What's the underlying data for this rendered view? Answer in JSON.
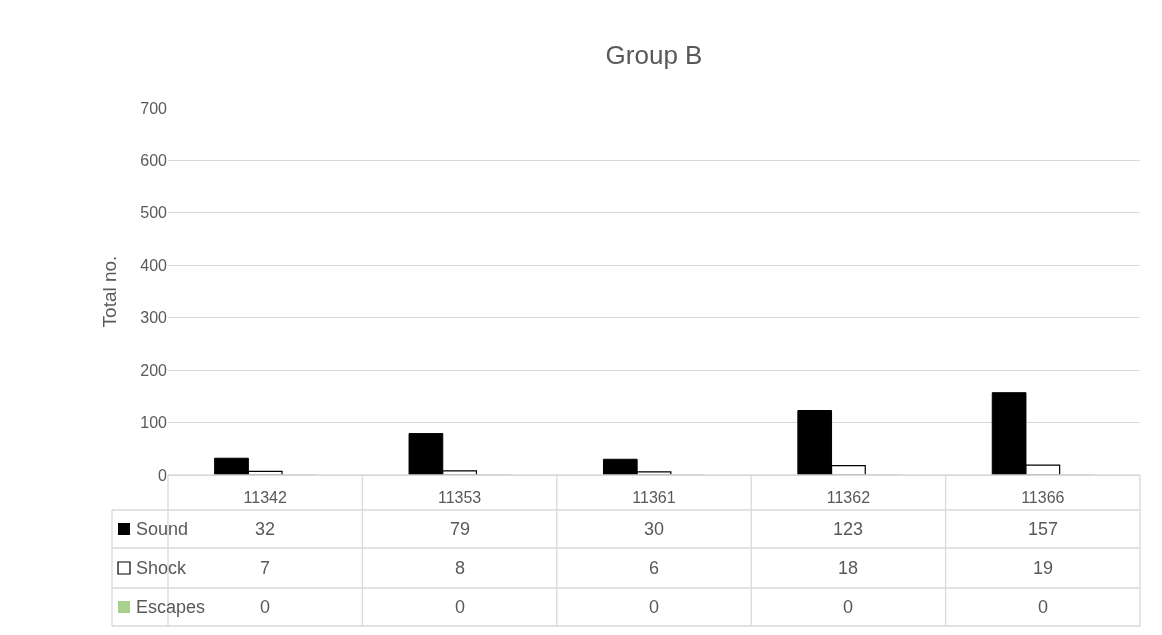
{
  "chart_data": {
    "type": "bar",
    "title": "Group B",
    "ylabel": "Total no.",
    "categories": [
      "11342",
      "11353",
      "11361",
      "11362",
      "11366"
    ],
    "series": [
      {
        "name": "Sound",
        "color": "#000000",
        "values": [
          32,
          79,
          30,
          123,
          157
        ]
      },
      {
        "name": "Shock",
        "color": "#ffffff",
        "values": [
          7,
          8,
          6,
          18,
          19
        ]
      },
      {
        "name": "Escapes",
        "color": "#a9d18e",
        "values": [
          0,
          0,
          0,
          0,
          0
        ]
      }
    ],
    "ylim": [
      0,
      700
    ],
    "yticks": [
      0,
      100,
      200,
      300,
      400,
      500,
      600,
      700
    ],
    "grid": "y",
    "data_labels": true,
    "legend": "bottom left"
  }
}
